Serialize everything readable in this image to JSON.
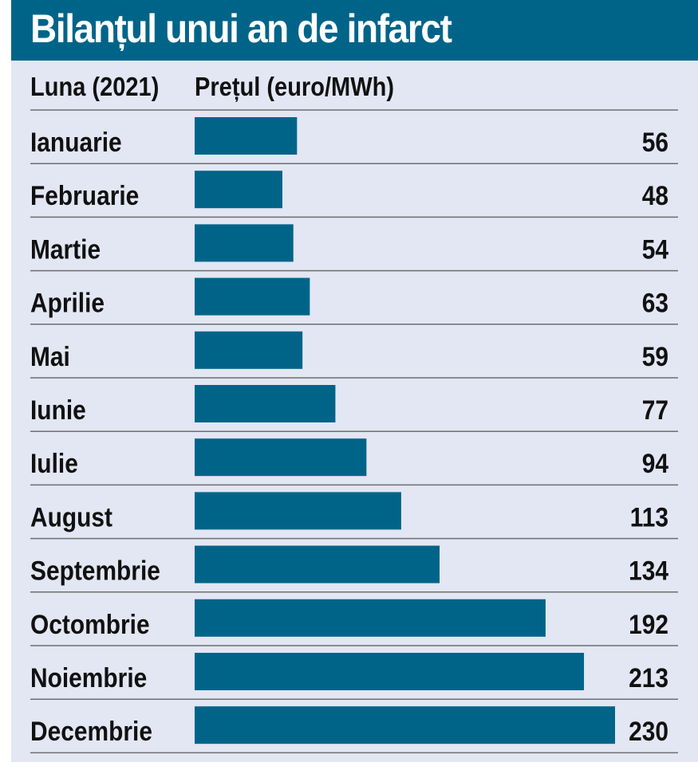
{
  "title": "Bilanțul unui an de infarct",
  "header": {
    "month_col": "Luna (2021)",
    "price_col": "Prețul (euro/MWh)"
  },
  "colors": {
    "title_bg": "#006489",
    "bar": "#006489",
    "panel_bg": "#e3e6f3",
    "divider": "#6e6e6e"
  },
  "chart_data": {
    "type": "bar",
    "orientation": "horizontal",
    "categories": [
      "Ianuarie",
      "Februarie",
      "Martie",
      "Aprilie",
      "Mai",
      "Iunie",
      "Iulie",
      "August",
      "Septembrie",
      "Octombrie",
      "Noiembrie",
      "Decembrie"
    ],
    "values": [
      56,
      48,
      54,
      63,
      59,
      77,
      94,
      113,
      134,
      192,
      213,
      230
    ],
    "title": "Bilanțul unui an de infarct",
    "xlabel": "Prețul (euro/MWh)",
    "ylabel": "Luna (2021)",
    "xlim": [
      0,
      230
    ],
    "grid": false,
    "legend": "none"
  }
}
